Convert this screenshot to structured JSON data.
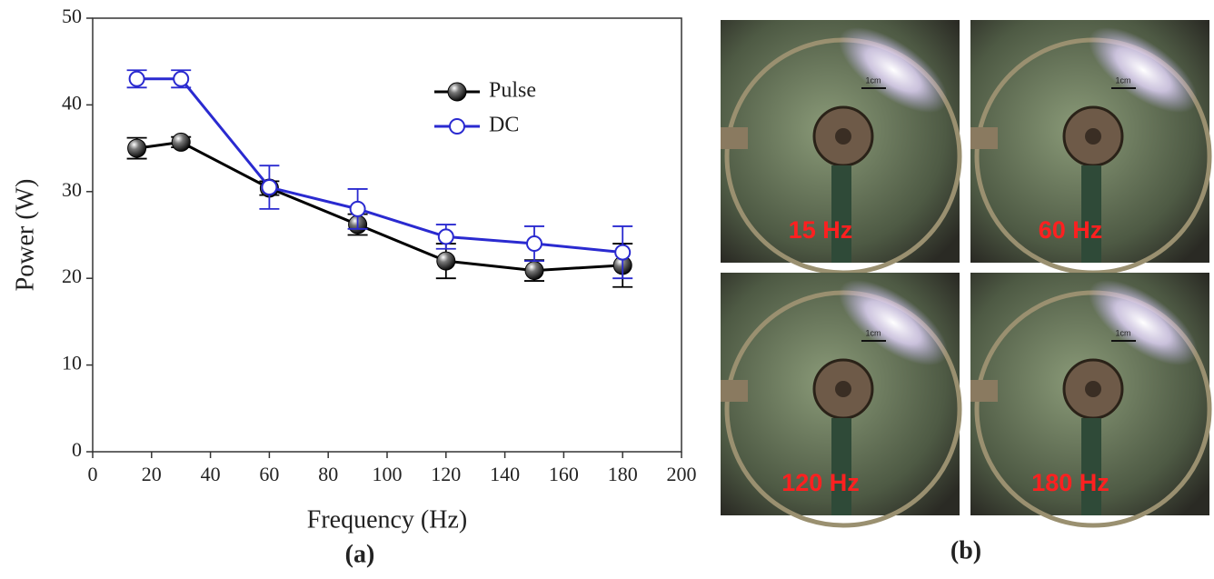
{
  "chart_data": {
    "type": "line",
    "xlabel": "Frequency (Hz)",
    "ylabel": "Power (W)",
    "x": [
      15,
      30,
      60,
      90,
      120,
      150,
      180
    ],
    "series": [
      {
        "name": "Pulse",
        "color": "#000000",
        "marker": "filled",
        "values": [
          35,
          35.7,
          30.4,
          26.2,
          22,
          20.9,
          21.5
        ],
        "errors": [
          1.2,
          0.6,
          0.8,
          1.2,
          2,
          1.2,
          2.5
        ]
      },
      {
        "name": "DC",
        "color": "#2a2ad0",
        "marker": "open",
        "values": [
          43,
          43,
          30.5,
          28,
          24.8,
          24,
          23
        ],
        "errors": [
          1,
          1,
          2.5,
          2.3,
          1.4,
          2,
          3
        ]
      }
    ],
    "xlim": [
      0,
      200
    ],
    "xticks": [
      0,
      20,
      40,
      60,
      80,
      100,
      120,
      140,
      160,
      180,
      200
    ],
    "ylim": [
      0,
      50
    ],
    "yticks": [
      0,
      10,
      20,
      30,
      40,
      50
    ],
    "legend": "upper right"
  },
  "panel_labels": [
    "(a)",
    "(b)"
  ],
  "photos": [
    {
      "label": "15 Hz",
      "scale": "1cm"
    },
    {
      "label": "60 Hz",
      "scale": "1cm"
    },
    {
      "label": "120 Hz",
      "scale": "1cm"
    },
    {
      "label": "180 Hz",
      "scale": "1cm"
    }
  ]
}
